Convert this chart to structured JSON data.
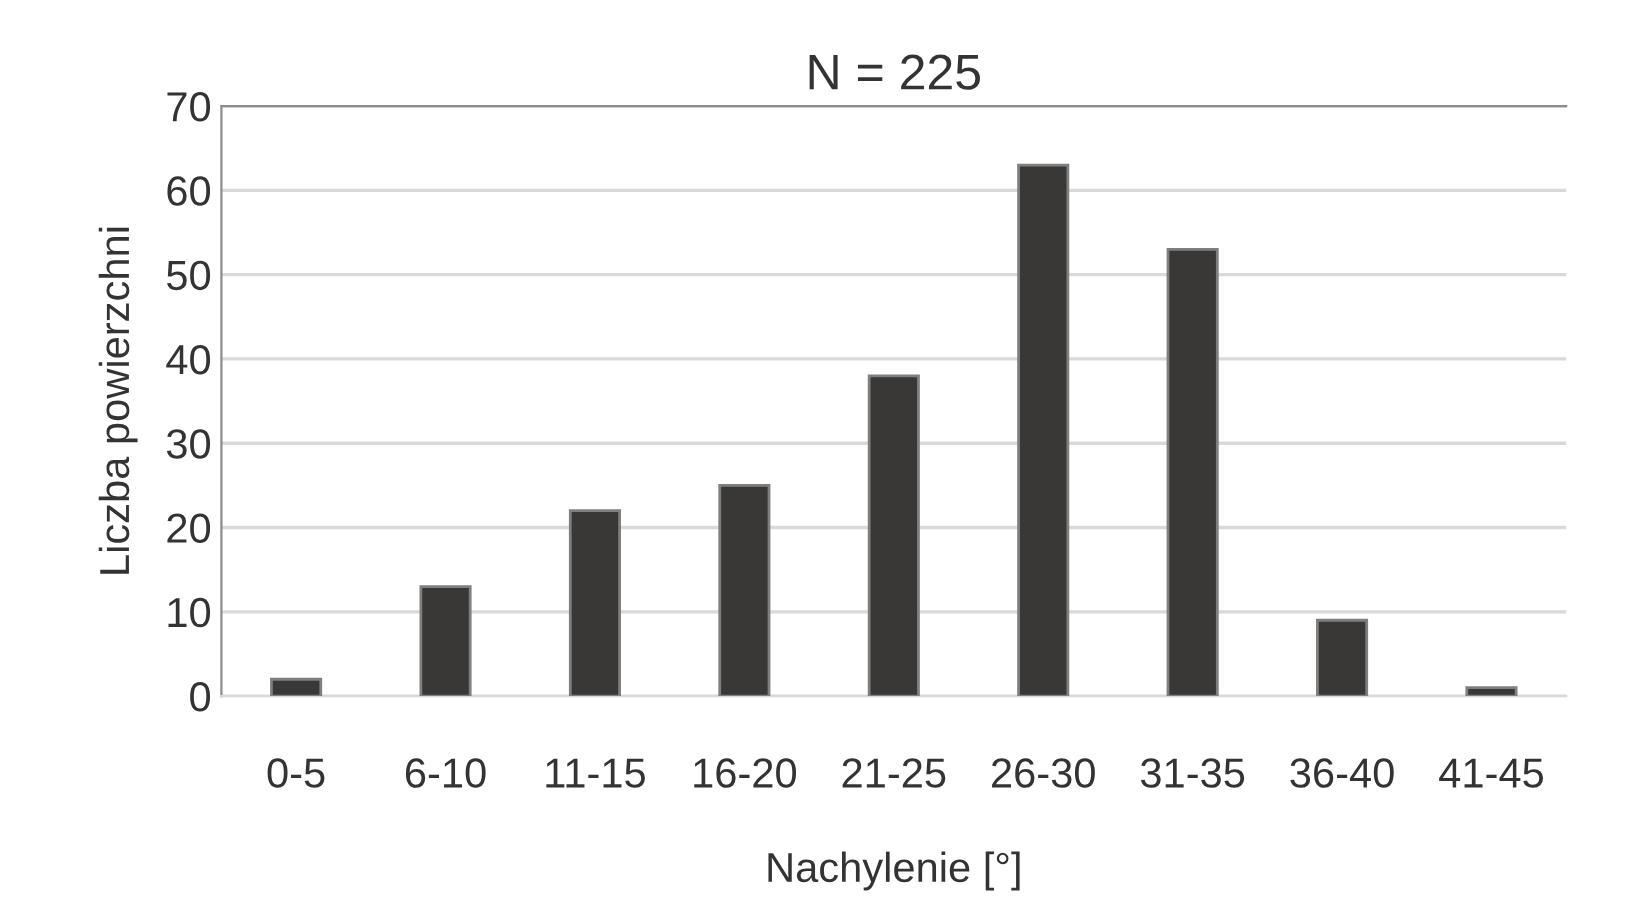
{
  "chart_data": {
    "type": "bar",
    "title": "N = 225",
    "xlabel": "Nachylenie [°]",
    "ylabel": "Liczba powierzchni",
    "categories": [
      "0-5",
      "6-10",
      "11-15",
      "16-20",
      "21-25",
      "26-30",
      "31-35",
      "36-40",
      "41-45"
    ],
    "values": [
      2,
      13,
      22,
      25,
      38,
      63,
      53,
      9,
      1
    ],
    "color": "#3a3836",
    "ylim": [
      0,
      70
    ],
    "yticks": [
      0,
      10,
      20,
      30,
      40,
      50,
      60,
      70
    ],
    "grid": "y",
    "legend": false
  }
}
